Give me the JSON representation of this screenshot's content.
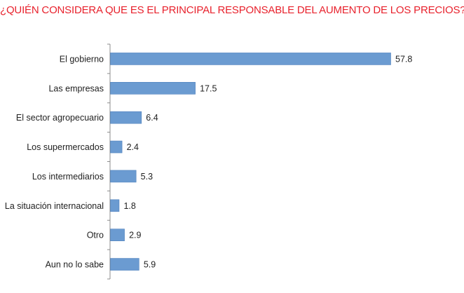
{
  "colors": {
    "title": "#e8222d",
    "bar": "#6b9bd1",
    "bar_stroke": "#4f81bd",
    "axis": "#8c8c8c"
  },
  "chart_data": {
    "type": "bar",
    "orientation": "horizontal",
    "title": "¿QUIÉN CONSIDERA QUE ES EL PRINCIPAL RESPONSABLE DEL AUMENTO DE LOS PRECIOS?",
    "xlabel": "",
    "ylabel": "",
    "xlim": [
      0,
      60
    ],
    "grid": false,
    "categories": [
      "El gobierno",
      "Las empresas",
      "El sector agropecuario",
      "Los supermercados",
      "Los intermediarios",
      "La situación internacional",
      "Otro",
      "Aun no lo sabe"
    ],
    "values": [
      57.8,
      17.5,
      6.4,
      2.4,
      5.3,
      1.8,
      2.9,
      5.9
    ],
    "value_labels": [
      "57.8",
      "17.5",
      "6.4",
      "2.4",
      "5.3",
      "1.8",
      "2.9",
      "5.9"
    ]
  }
}
